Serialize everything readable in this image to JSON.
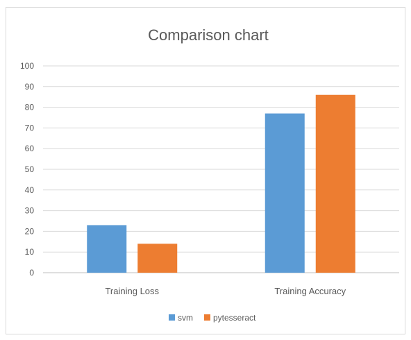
{
  "chart_data": {
    "type": "bar",
    "title": "Comparison chart",
    "categories": [
      "Training Loss",
      "Training Accuracy"
    ],
    "series": [
      {
        "name": "svm",
        "values": [
          23,
          77
        ],
        "color": "#5b9bd5"
      },
      {
        "name": "pytesseract",
        "values": [
          14,
          86
        ],
        "color": "#ed7d31"
      }
    ],
    "ylim": [
      0,
      100
    ],
    "yticks": [
      0,
      10,
      20,
      30,
      40,
      50,
      60,
      70,
      80,
      90,
      100
    ],
    "grid": true,
    "legend": "bottom"
  }
}
